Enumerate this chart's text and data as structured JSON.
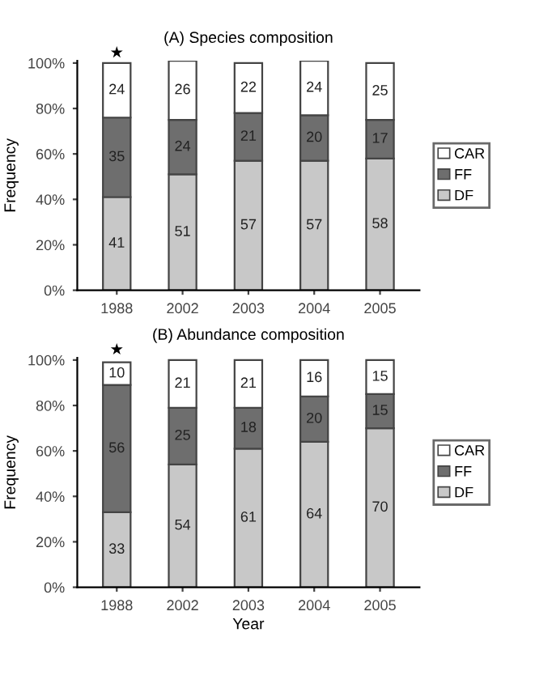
{
  "chart_data": [
    {
      "type": "bar",
      "stacked": true,
      "title": "(A) Species composition",
      "ylabel": "Frequency",
      "categories": [
        "1988",
        "2002",
        "2003",
        "2004",
        "2005"
      ],
      "series": [
        {
          "name": "DF",
          "color": "#c8c8c8",
          "values": [
            41,
            51,
            57,
            57,
            58
          ]
        },
        {
          "name": "FF",
          "color": "#6e6e6e",
          "values": [
            35,
            24,
            21,
            20,
            17
          ]
        },
        {
          "name": "CAR",
          "color": "#ffffff",
          "values": [
            24,
            26,
            22,
            24,
            25
          ]
        }
      ],
      "data_labels": true,
      "legend": "right",
      "grid": false,
      "ylim": [
        0,
        101
      ],
      "yticks": [
        {
          "value": 0,
          "label": "0%"
        },
        {
          "value": 20,
          "label": "20%"
        },
        {
          "value": 40,
          "label": "40%"
        },
        {
          "value": 60,
          "label": "60%"
        },
        {
          "value": 80,
          "label": "80%"
        },
        {
          "value": 100,
          "label": "100%"
        }
      ],
      "annotations": [
        {
          "text": "★",
          "x": "1988",
          "y": 100
        }
      ]
    },
    {
      "type": "bar",
      "stacked": true,
      "title": "(B) Abundance composition",
      "ylabel": "Frequency",
      "xlabel": "Year",
      "categories": [
        "1988",
        "2002",
        "2003",
        "2004",
        "2005"
      ],
      "series": [
        {
          "name": "DF",
          "color": "#c8c8c8",
          "values": [
            33,
            54,
            61,
            64,
            70
          ]
        },
        {
          "name": "FF",
          "color": "#6e6e6e",
          "values": [
            56,
            25,
            18,
            20,
            15
          ]
        },
        {
          "name": "CAR",
          "color": "#ffffff",
          "values": [
            10,
            21,
            21,
            16,
            15
          ]
        }
      ],
      "data_labels": true,
      "legend": "right",
      "grid": false,
      "ylim": [
        0,
        101
      ],
      "yticks": [
        {
          "value": 0,
          "label": "0%"
        },
        {
          "value": 20,
          "label": "20%"
        },
        {
          "value": 40,
          "label": "40%"
        },
        {
          "value": 60,
          "label": "60%"
        },
        {
          "value": 80,
          "label": "80%"
        },
        {
          "value": 100,
          "label": "100%"
        }
      ],
      "annotations": [
        {
          "text": "★",
          "x": "1988",
          "y": 100
        }
      ]
    }
  ]
}
